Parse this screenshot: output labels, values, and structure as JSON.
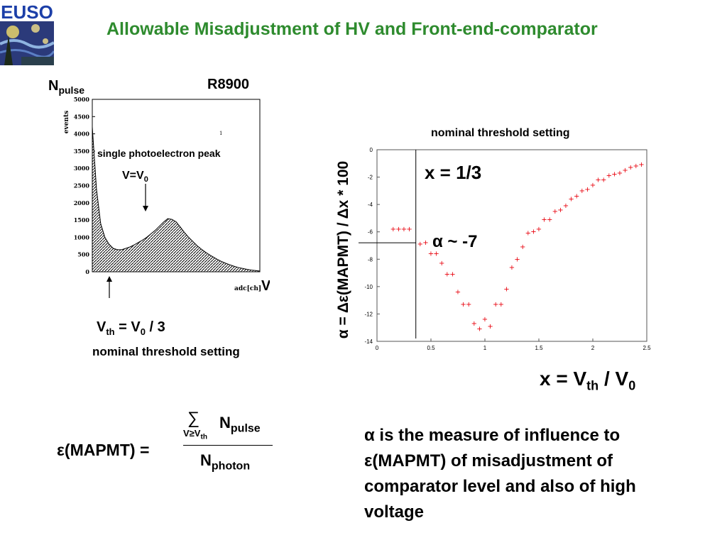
{
  "header": {
    "logo_text": "EUSO",
    "title": "Allowable Misadjustment of HV and Front-end-comparator"
  },
  "left_panel": {
    "y_label_main": "N",
    "y_label_sub": "pulse",
    "device": "R8900",
    "events_label": "events",
    "marker": "1",
    "peak_label": "single photoelectron peak",
    "v_eq_main": "V=V",
    "v_eq_sub": "0",
    "x_axis_small": "adc[ch]",
    "x_axis_big": "V",
    "vth_main": "V",
    "vth_sub": "th",
    "vth_eq": " = V",
    "vth_sub0": "0",
    "vth_tail": " / 3",
    "nominal": "nominal threshold setting"
  },
  "right_panel": {
    "nominal": "nominal threshold setting",
    "x_note": "x = 1/3",
    "alpha_note": "α ~ -7",
    "y_axis_label": "α = Δε(MAPMT) / Δx * 100",
    "x_axis_main": "x = V",
    "x_axis_sub": "th",
    "x_axis_mid": " / V",
    "x_axis_sub0": "0"
  },
  "formula": {
    "lhs": "ε(MAPMT) =",
    "sum_symbol": "∑",
    "sum_cond_main": "V≥V",
    "sum_cond_sub": "th",
    "num_main": "N",
    "num_sub": "pulse",
    "den_main": "N",
    "den_sub": "photon"
  },
  "description": "α is the measure of influence to ε(MAPMT) of misadjustment of comparator level and also of high voltage",
  "chart_data": [
    {
      "type": "area",
      "title": "",
      "ylabel": "events",
      "xlabel": "adc[ch]",
      "ylim": [
        0,
        5000
      ],
      "yticks": [
        0,
        500,
        1000,
        1500,
        2000,
        2500,
        3000,
        3500,
        4000,
        4500,
        5000
      ],
      "x": [
        0,
        1,
        2,
        3,
        4,
        5,
        6,
        7,
        8,
        9,
        10,
        11,
        12,
        13,
        14,
        15,
        16,
        17,
        18,
        19,
        20,
        21,
        22,
        23,
        24,
        25,
        26,
        27,
        28,
        29,
        30,
        31,
        32,
        33,
        34,
        35,
        36,
        37,
        38,
        39,
        40
      ],
      "values": [
        4200,
        2400,
        1400,
        1000,
        800,
        680,
        640,
        640,
        680,
        720,
        780,
        850,
        920,
        1000,
        1100,
        1200,
        1320,
        1440,
        1540,
        1520,
        1450,
        1300,
        1140,
        1000,
        880,
        760,
        660,
        570,
        490,
        420,
        350,
        290,
        240,
        195,
        155,
        120,
        95,
        70,
        50,
        35,
        20
      ]
    },
    {
      "type": "scatter",
      "title": "",
      "xlabel": "x = Vth / V0",
      "ylabel": "α = Δε(MAPMT) / Δx * 100",
      "xlim": [
        0,
        2.5
      ],
      "ylim": [
        -14,
        0
      ],
      "xticks": [
        0,
        0.5,
        1,
        1.5,
        2,
        2.5
      ],
      "yticks": [
        0,
        -2,
        -4,
        -6,
        -8,
        -10,
        -12,
        -14
      ],
      "x_marker": 0.36,
      "y_marker": -6.8,
      "x": [
        0.15,
        0.2,
        0.25,
        0.3,
        0.4,
        0.45,
        0.5,
        0.55,
        0.6,
        0.65,
        0.7,
        0.75,
        0.8,
        0.85,
        0.9,
        0.95,
        1.0,
        1.05,
        1.1,
        1.15,
        1.2,
        1.25,
        1.3,
        1.35,
        1.4,
        1.45,
        1.5,
        1.55,
        1.6,
        1.65,
        1.7,
        1.75,
        1.8,
        1.85,
        1.9,
        1.95,
        2.0,
        2.05,
        2.1,
        2.15,
        2.2,
        2.25,
        2.3,
        2.35,
        2.4,
        2.45
      ],
      "y": [
        -5.8,
        -5.8,
        -5.8,
        -5.8,
        -6.9,
        -6.8,
        -7.6,
        -7.6,
        -8.3,
        -9.1,
        -9.1,
        -10.4,
        -11.3,
        -11.3,
        -12.7,
        -13.1,
        -12.4,
        -12.9,
        -11.3,
        -11.3,
        -10.2,
        -8.6,
        -8.0,
        -7.1,
        -6.1,
        -6.0,
        -5.8,
        -5.1,
        -5.1,
        -4.5,
        -4.4,
        -4.1,
        -3.6,
        -3.4,
        -3.0,
        -2.9,
        -2.6,
        -2.2,
        -2.2,
        -1.9,
        -1.8,
        -1.7,
        -1.5,
        -1.3,
        -1.2,
        -1.1
      ]
    }
  ]
}
